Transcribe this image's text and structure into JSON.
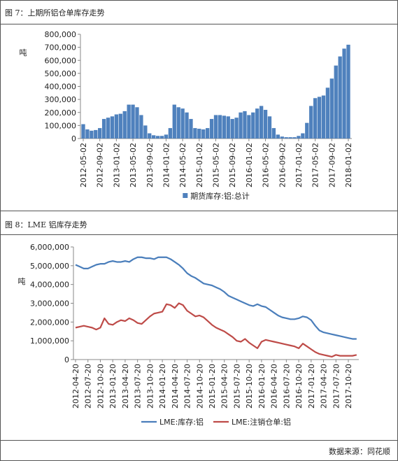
{
  "chart_data": [
    {
      "type": "bar",
      "title": "图 7：上期所铝仓单库存走势",
      "y_label": "吨",
      "categories": [
        "2012-05-02",
        null,
        null,
        null,
        "2012-09-02",
        null,
        null,
        null,
        "2013-01-02",
        null,
        null,
        null,
        "2013-05-02",
        null,
        null,
        null,
        "2013-09-02",
        null,
        null,
        null,
        "2014-01-02",
        null,
        null,
        null,
        "2014-05-02",
        null,
        null,
        null,
        "2015-01-02",
        null,
        null,
        null,
        "2015-05-02",
        null,
        null,
        null,
        "2015-09-02",
        null,
        null,
        null,
        "2016-01-02",
        null,
        null,
        null,
        "2016-05-02",
        null,
        null,
        null,
        "2016-09-02",
        null,
        null,
        null,
        "2017-01-02",
        null,
        null,
        null,
        "2017-05-02",
        null,
        null,
        null,
        "2017-09-02",
        null,
        null,
        null,
        "2018-01-02"
      ],
      "series": [
        {
          "name": "期货库存:铝:总计",
          "color": "#4f81bd",
          "values": [
            110000,
            70000,
            60000,
            65000,
            80000,
            150000,
            160000,
            170000,
            185000,
            190000,
            210000,
            260000,
            260000,
            240000,
            180000,
            100000,
            40000,
            25000,
            20000,
            20000,
            30000,
            80000,
            260000,
            240000,
            230000,
            200000,
            150000,
            80000,
            75000,
            70000,
            80000,
            150000,
            180000,
            180000,
            175000,
            170000,
            150000,
            160000,
            200000,
            210000,
            180000,
            200000,
            230000,
            250000,
            220000,
            170000,
            80000,
            30000,
            15000,
            10000,
            10000,
            10000,
            20000,
            40000,
            120000,
            250000,
            310000,
            320000,
            330000,
            390000,
            460000,
            560000,
            630000,
            690000,
            720000
          ]
        }
      ],
      "ylim": [
        0,
        800000
      ],
      "yticks": [
        0,
        {
          "value": 100000,
          "label": "100,000"
        },
        {
          "value": 200000,
          "label": "200,000"
        },
        {
          "value": 300000,
          "label": "300,000"
        },
        {
          "value": 400000,
          "label": "400,000"
        },
        {
          "value": 500000,
          "label": "500,000"
        },
        {
          "value": 600000,
          "label": "600,000"
        },
        {
          "value": 700000,
          "label": "700,000"
        },
        {
          "value": 800000,
          "label": "800,000"
        }
      ],
      "grid": false
    },
    {
      "type": "line",
      "title": "图 8：LME 铝库存走势",
      "y_label": "吨",
      "categories": [
        "2012-04-20",
        null,
        null,
        "2012-07-20",
        null,
        null,
        "2012-10-20",
        null,
        null,
        "2013-01-20",
        null,
        null,
        "2013-04-20",
        null,
        null,
        "2013-07-20",
        null,
        null,
        "2013-10-20",
        null,
        null,
        "2014-01-20",
        null,
        null,
        "2014-04-20",
        null,
        null,
        "2014-07-20",
        null,
        null,
        "2014-10-20",
        null,
        null,
        "2015-01-20",
        null,
        null,
        "2015-04-20",
        null,
        null,
        "2015-07-20",
        null,
        null,
        "2015-10-20",
        null,
        null,
        "2016-01-20",
        null,
        null,
        "2016-04-20",
        null,
        null,
        "2016-07-20",
        null,
        null,
        "2016-10-20",
        null,
        null,
        "2017-01-20",
        null,
        null,
        "2017-04-20",
        null,
        null,
        "2017-07-20",
        null,
        null,
        "2017-10-20",
        null,
        null
      ],
      "series": [
        {
          "name": "LME:库存:铝",
          "color": "#4a7ebb",
          "values": [
            5050000,
            4950000,
            4850000,
            4850000,
            4950000,
            5050000,
            5100000,
            5100000,
            5200000,
            5250000,
            5200000,
            5200000,
            5250000,
            5200000,
            5350000,
            5450000,
            5450000,
            5400000,
            5400000,
            5350000,
            5450000,
            5450000,
            5450000,
            5350000,
            5200000,
            5050000,
            4850000,
            4600000,
            4450000,
            4350000,
            4200000,
            4050000,
            4000000,
            3950000,
            3850000,
            3750000,
            3600000,
            3400000,
            3300000,
            3200000,
            3100000,
            3000000,
            2900000,
            2850000,
            2950000,
            2850000,
            2800000,
            2650000,
            2500000,
            2350000,
            2250000,
            2200000,
            2150000,
            2150000,
            2200000,
            2300000,
            2250000,
            2100000,
            1800000,
            1550000,
            1450000,
            1400000,
            1350000,
            1300000,
            1250000,
            1200000,
            1150000,
            1100000,
            1100000
          ]
        },
        {
          "name": "LME:注销仓单:铝",
          "color": "#be4b48",
          "values": [
            1700000,
            1750000,
            1800000,
            1750000,
            1700000,
            1600000,
            1700000,
            2200000,
            1900000,
            1850000,
            2000000,
            2100000,
            2050000,
            2200000,
            2100000,
            1950000,
            1900000,
            2100000,
            2300000,
            2450000,
            2500000,
            2550000,
            2950000,
            2900000,
            2750000,
            3000000,
            2900000,
            2600000,
            2450000,
            2300000,
            2350000,
            2250000,
            2050000,
            1850000,
            1700000,
            1600000,
            1500000,
            1350000,
            1200000,
            1000000,
            950000,
            1100000,
            900000,
            750000,
            600000,
            950000,
            1050000,
            1000000,
            950000,
            900000,
            850000,
            800000,
            750000,
            700000,
            600000,
            850000,
            700000,
            550000,
            400000,
            300000,
            250000,
            200000,
            150000,
            250000,
            200000,
            200000,
            200000,
            200000,
            250000
          ]
        }
      ],
      "ylim": [
        0,
        6000000
      ],
      "yticks": [
        0,
        {
          "value": 1000000,
          "label": "1,000,000"
        },
        {
          "value": 2000000,
          "label": "2,000,000"
        },
        {
          "value": 3000000,
          "label": "3,000,000"
        },
        {
          "value": 4000000,
          "label": "4,000,000"
        },
        {
          "value": 5000000,
          "label": "5,000,000"
        },
        {
          "value": 6000000,
          "label": "6,000,000"
        }
      ],
      "grid": false
    }
  ],
  "source": "数据来源：同花顺"
}
